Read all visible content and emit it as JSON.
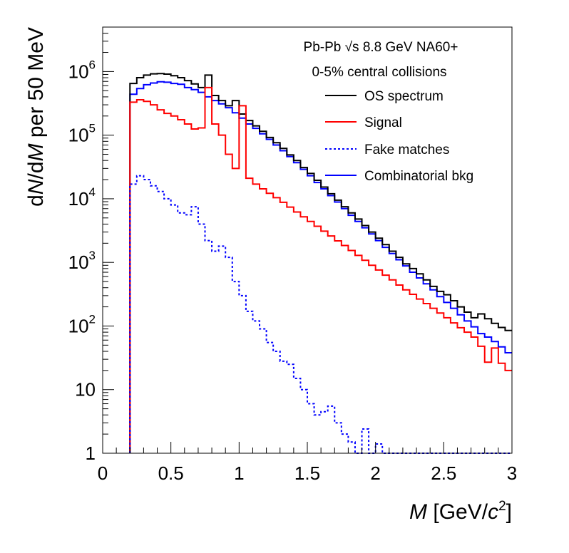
{
  "chart_data": {
    "type": "line",
    "title_lines": [
      "Pb-Pb √s 8.8 GeV NA60+",
      "0-5% central collisions"
    ],
    "xlabel": {
      "var": "M",
      "unit_open": " [GeV/",
      "unit_var": "c",
      "unit_sup": "2",
      "unit_close": "]"
    },
    "ylabel": {
      "p1": "d",
      "v1": "N",
      "p2": "/d",
      "v2": "M",
      "p3": " per 50 MeV"
    },
    "xlim": [
      0,
      3
    ],
    "ylim": [
      1,
      5000000
    ],
    "yscale": "log",
    "x_ticks": [
      {
        "v": 0,
        "label": "0"
      },
      {
        "v": 0.5,
        "label": "0.5"
      },
      {
        "v": 1,
        "label": "1"
      },
      {
        "v": 1.5,
        "label": "1.5"
      },
      {
        "v": 2,
        "label": "2"
      },
      {
        "v": 2.5,
        "label": "2.5"
      },
      {
        "v": 3,
        "label": "3"
      }
    ],
    "y_ticks": [
      {
        "v": 1,
        "base": "1",
        "exp": ""
      },
      {
        "v": 10,
        "base": "10",
        "exp": ""
      },
      {
        "v": 100,
        "base": "10",
        "exp": "2"
      },
      {
        "v": 1000,
        "base": "10",
        "exp": "3"
      },
      {
        "v": 10000,
        "base": "10",
        "exp": "4"
      },
      {
        "v": 100000,
        "base": "10",
        "exp": "5"
      },
      {
        "v": 1000000,
        "base": "10",
        "exp": "6"
      }
    ],
    "bin_start": 0.2,
    "bin_width": 0.05,
    "legend_position": "top-right",
    "series": [
      {
        "name": "Combinatorial bkg",
        "key": "combinatorial-bkg",
        "color": "#0000ff",
        "dash": "solid",
        "values": [
          440000,
          540000,
          620000,
          660000,
          690000,
          680000,
          650000,
          630000,
          560000,
          520000,
          470000,
          400000,
          350000,
          310000,
          270000,
          225000,
          185000,
          150000,
          128000,
          105000,
          86000,
          70000,
          57000,
          46000,
          37000,
          29000,
          23000,
          18000,
          14300,
          11200,
          8900,
          7000,
          5500,
          4400,
          3500,
          2800,
          2200,
          1720,
          1380,
          1100,
          880,
          700,
          570,
          460,
          370,
          290,
          235,
          190,
          150,
          120,
          97,
          76,
          67,
          57,
          47,
          38
        ]
      },
      {
        "name": "OS spectrum",
        "key": "os-spectrum",
        "color": "#000000",
        "dash": "solid",
        "values": [
          650000,
          800000,
          880000,
          920000,
          930000,
          910000,
          860000,
          800000,
          720000,
          640000,
          560000,
          880000,
          420000,
          350000,
          290000,
          350000,
          215000,
          170000,
          140000,
          115000,
          92000,
          76000,
          62000,
          49000,
          40000,
          31000,
          25000,
          19500,
          15300,
          12000,
          9500,
          7500,
          6000,
          4800,
          3800,
          3000,
          2400,
          1900,
          1500,
          1200,
          950,
          800,
          660,
          530,
          420,
          350,
          310,
          250,
          200,
          165,
          135,
          155,
          130,
          110,
          95,
          85
        ]
      },
      {
        "name": "Signal",
        "key": "signal",
        "color": "#ff0000",
        "dash": "solid",
        "values": [
          330000,
          360000,
          340000,
          300000,
          250000,
          220000,
          200000,
          175000,
          150000,
          125000,
          130000,
          560000,
          150000,
          100000,
          50000,
          30000,
          290000,
          21000,
          17000,
          14300,
          12200,
          10400,
          8800,
          7400,
          6200,
          5200,
          4400,
          3700,
          3100,
          2600,
          2180,
          1840,
          1540,
          1290,
          1080,
          900,
          760,
          630,
          530,
          440,
          370,
          315,
          265,
          225,
          190,
          160,
          135,
          112,
          94,
          80,
          67,
          48,
          27,
          45,
          26,
          20
        ]
      },
      {
        "name": "Fake matches",
        "key": "fake-matches",
        "color": "#0000ff",
        "dash": "dotted",
        "values": [
          17000,
          23000,
          20000,
          16000,
          13000,
          10000,
          8000,
          6000,
          5600,
          7500,
          4000,
          2200,
          1500,
          1800,
          1200,
          500,
          300,
          170,
          120,
          90,
          55,
          40,
          28,
          25,
          15,
          10,
          6,
          4,
          4.5,
          5.5,
          3,
          2,
          1.5,
          1,
          2.4,
          1,
          1.4,
          1,
          1,
          1,
          1,
          1,
          1,
          1,
          1,
          1,
          1,
          1,
          1,
          1,
          1,
          1,
          1,
          1,
          1,
          1
        ]
      }
    ],
    "legend_order": [
      "os-spectrum",
      "signal",
      "fake-matches",
      "combinatorial-bkg"
    ]
  }
}
